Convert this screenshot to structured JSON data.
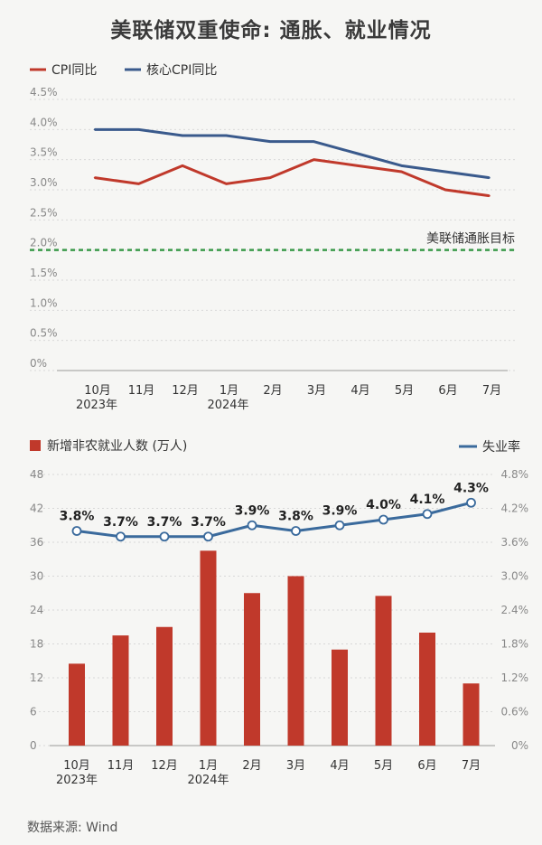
{
  "page": {
    "title": "美联储双重使命: 通胀、就业情况",
    "source": "数据来源: Wind"
  },
  "chart_data": [
    {
      "type": "line",
      "legend": [
        "CPI同比",
        "核心CPI同比"
      ],
      "categories": [
        "10月",
        "11月",
        "12月",
        "1月",
        "2月",
        "3月",
        "4月",
        "5月",
        "6月",
        "7月"
      ],
      "year_labels": [
        "2023年",
        "",
        "",
        "2024年",
        "",
        "",
        "",
        "",
        "",
        ""
      ],
      "series": [
        {
          "name": "CPI同比",
          "color": "#c0392b",
          "values": [
            3.2,
            3.1,
            3.4,
            3.1,
            3.2,
            3.5,
            3.4,
            3.3,
            3.0,
            2.9
          ]
        },
        {
          "name": "核心CPI同比",
          "color": "#3a5a8c",
          "values": [
            4.0,
            4.0,
            3.9,
            3.9,
            3.8,
            3.8,
            3.6,
            3.4,
            3.3,
            3.2
          ]
        }
      ],
      "y_ticks": [
        "0%",
        "0.5%",
        "1.0%",
        "1.5%",
        "2.0%",
        "2.5%",
        "3.0%",
        "3.5%",
        "4.0%",
        "4.5%"
      ],
      "ylim": [
        0,
        4.5
      ],
      "target": {
        "label": "美联储通胀目标",
        "value": 2.0,
        "color": "#3a9a4a"
      }
    },
    {
      "type": "bar+line",
      "legend_bar": "新增非农就业人数 (万人)",
      "legend_line": "失业率",
      "categories": [
        "10月",
        "11月",
        "12月",
        "1月",
        "2月",
        "3月",
        "4月",
        "5月",
        "6月",
        "7月"
      ],
      "year_labels": [
        "2023年",
        "",
        "",
        "2024年",
        "",
        "",
        "",
        "",
        "",
        ""
      ],
      "bar_values": [
        14.5,
        19.5,
        21,
        34.5,
        27,
        30,
        17,
        26.5,
        20,
        11
      ],
      "bar_color": "#c0392b",
      "line_values": [
        3.8,
        3.7,
        3.7,
        3.7,
        3.9,
        3.8,
        3.9,
        4.0,
        4.1,
        4.3
      ],
      "line_labels": [
        "3.8%",
        "3.7%",
        "3.7%",
        "3.7%",
        "3.9%",
        "3.8%",
        "3.9%",
        "4.0%",
        "4.1%",
        "4.3%"
      ],
      "line_color": "#3a6a9c",
      "y_left_ticks": [
        "0",
        "6",
        "12",
        "18",
        "24",
        "30",
        "36",
        "42",
        "48"
      ],
      "y_left_lim": [
        0,
        48
      ],
      "y_right_ticks": [
        "0%",
        "0.6%",
        "1.2%",
        "1.8%",
        "2.4%",
        "3.0%",
        "3.6%",
        "4.2%",
        "4.8%"
      ],
      "y_right_lim": [
        0,
        4.8
      ]
    }
  ]
}
